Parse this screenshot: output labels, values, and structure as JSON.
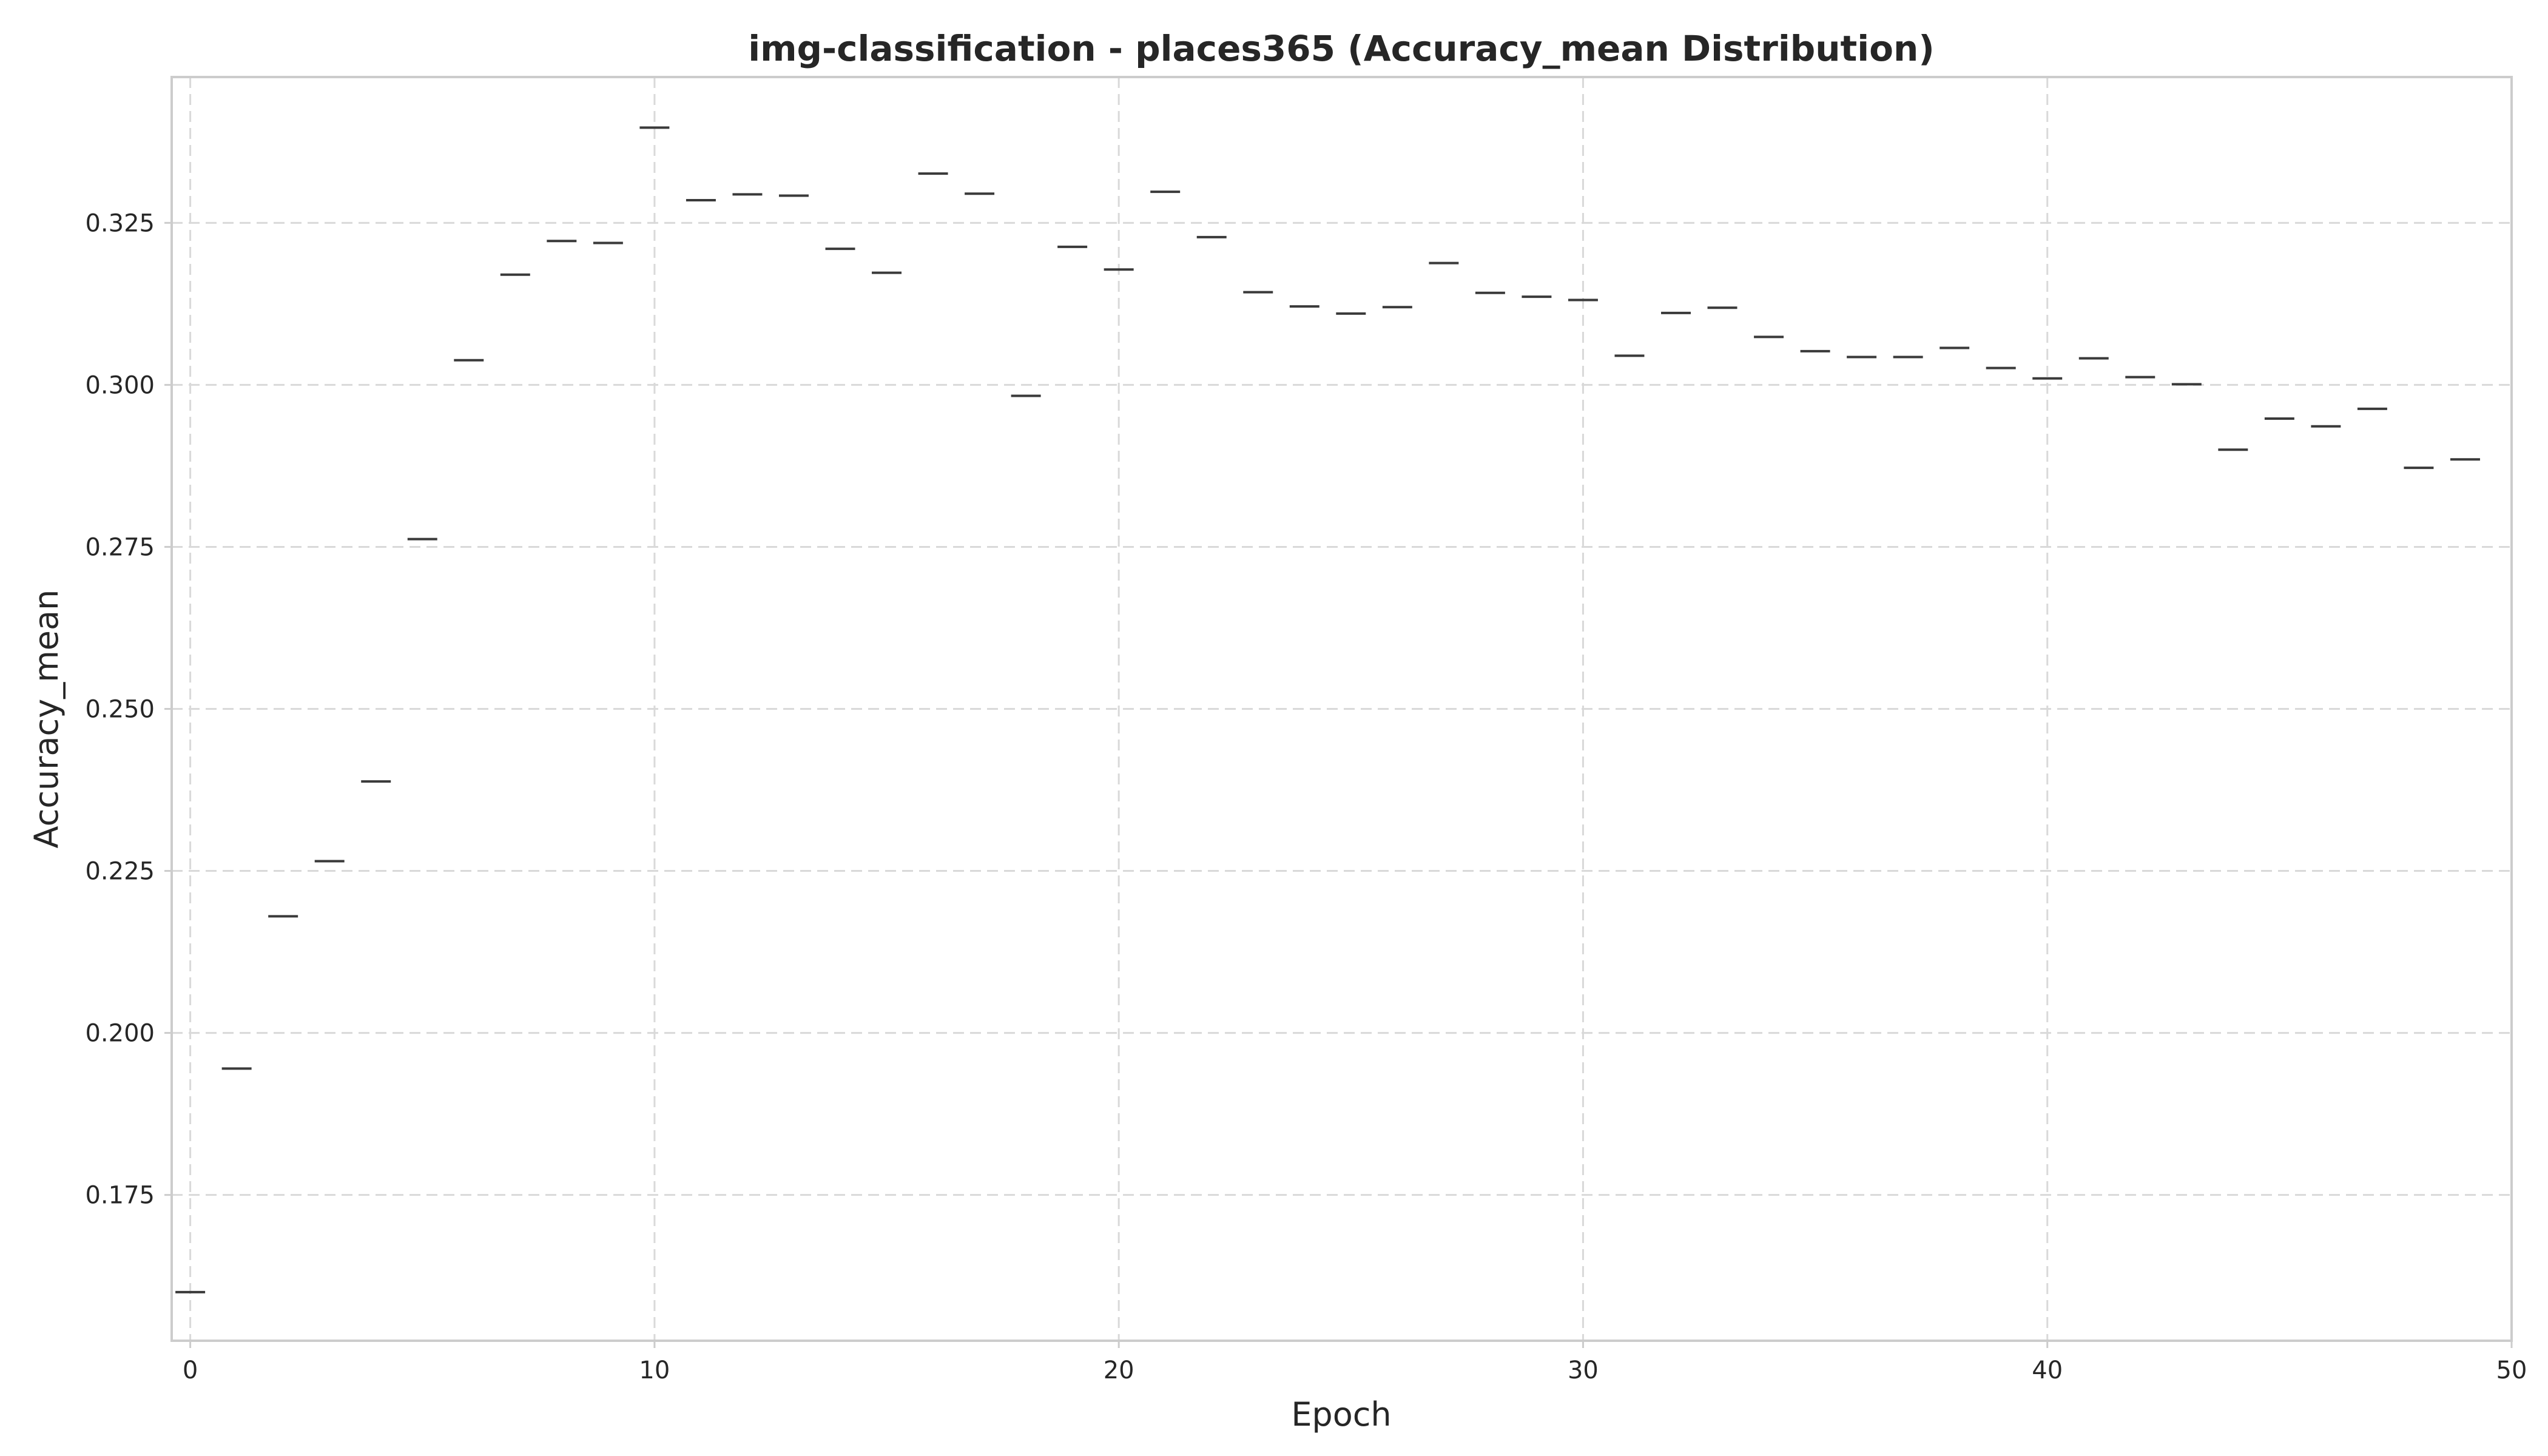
{
  "chart_data": {
    "type": "box",
    "title": "img-classification - places365 (Accuracy_mean Distribution)",
    "xlabel": "Epoch",
    "ylabel": "Accuracy_mean",
    "xlim": [
      -0.4,
      50
    ],
    "ylim": [
      0.1525,
      0.3475
    ],
    "xticks": [
      0,
      10,
      20,
      30,
      40,
      50
    ],
    "yticks": [
      0.175,
      0.2,
      0.225,
      0.25,
      0.275,
      0.3,
      0.325
    ],
    "ytick_labels": [
      "0.175",
      "0.200",
      "0.225",
      "0.250",
      "0.275",
      "0.300",
      "0.325"
    ],
    "grid": true,
    "x": [
      0,
      1,
      2,
      3,
      4,
      5,
      6,
      7,
      8,
      9,
      10,
      11,
      12,
      13,
      14,
      15,
      16,
      17,
      18,
      19,
      20,
      21,
      22,
      23,
      24,
      25,
      26,
      27,
      28,
      29,
      30,
      31,
      32,
      33,
      34,
      35,
      36,
      37,
      38,
      39,
      40,
      41,
      42,
      43,
      44,
      45,
      46,
      47,
      48,
      49
    ],
    "values": [
      0.16,
      0.1945,
      0.218,
      0.2265,
      0.2388,
      0.2762,
      0.3038,
      0.317,
      0.3222,
      0.3219,
      0.3397,
      0.3285,
      0.3294,
      0.3292,
      0.321,
      0.3173,
      0.3326,
      0.3295,
      0.2983,
      0.3213,
      0.3178,
      0.3298,
      0.3228,
      0.3143,
      0.3121,
      0.311,
      0.312,
      0.3188,
      0.3142,
      0.3136,
      0.3131,
      0.3045,
      0.3111,
      0.3119,
      0.3074,
      0.3052,
      0.3043,
      0.3043,
      0.3057,
      0.3026,
      0.301,
      0.3041,
      0.3012,
      0.3001,
      0.29,
      0.2948,
      0.2936,
      0.2963,
      0.2872,
      0.2885
    ],
    "colors": {
      "mark": "#3a3a3a",
      "grid": "#d9d9d9",
      "frame": "#cccccc",
      "text": "#262626"
    }
  }
}
